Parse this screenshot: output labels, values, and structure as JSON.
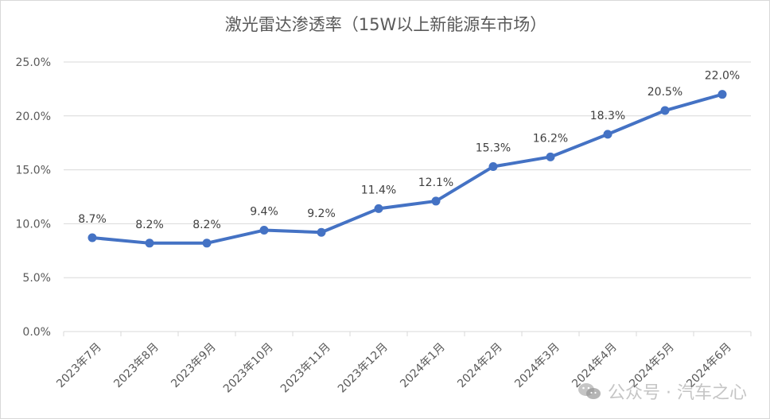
{
  "chart_data": {
    "type": "line",
    "title": "激光雷达渗透率（15W以上新能源车市场）",
    "categories": [
      "2023年7月",
      "2023年8月",
      "2023年9月",
      "2023年10月",
      "2023年11月",
      "2023年12月",
      "2024年1月",
      "2024年2月",
      "2024年3月",
      "2024年4月",
      "2024年5月",
      "2024年6月"
    ],
    "values": [
      8.7,
      8.2,
      8.2,
      9.4,
      9.2,
      11.4,
      12.1,
      15.3,
      16.2,
      18.3,
      20.5,
      22.0
    ],
    "data_labels": [
      "8.7%",
      "8.2%",
      "8.2%",
      "9.4%",
      "9.2%",
      "11.4%",
      "12.1%",
      "15.3%",
      "16.2%",
      "18.3%",
      "20.5%",
      "22.0%"
    ],
    "ylim": [
      0,
      25
    ],
    "yticks": [
      0,
      5,
      10,
      15,
      20,
      25
    ],
    "ytick_labels": [
      "0.0%",
      "5.0%",
      "10.0%",
      "15.0%",
      "20.0%",
      "25.0%"
    ],
    "grid": true,
    "legend": "none",
    "line_color": "#4472C4",
    "grid_color": "#d9d9d9"
  },
  "watermark": {
    "text": "公众号 · 汽车之心",
    "icon": "wechat-icon"
  }
}
